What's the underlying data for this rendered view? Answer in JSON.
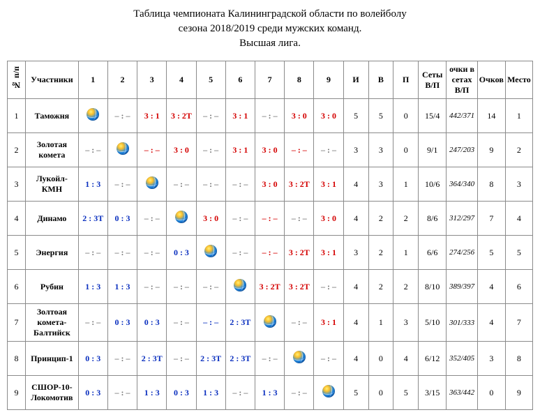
{
  "title_lines": [
    "Таблица чемпионата Калининградской области по волейболу",
    "сезона 2018/2019 среди мужских команд.",
    "Высшая лига."
  ],
  "columns": {
    "num": "№ п/п",
    "team": "Участники",
    "scores": [
      "1",
      "2",
      "3",
      "4",
      "5",
      "6",
      "7",
      "8",
      "9"
    ],
    "stats": [
      "И",
      "В",
      "П"
    ],
    "sets": "Сеты В/П",
    "setpts": "очки в сетах В/П",
    "pts": "Очков",
    "place": "Место"
  },
  "colors": {
    "red": "#d40000",
    "blue": "#0a2fbf",
    "black": "#222222",
    "gray_dash": "#777777"
  },
  "rows": [
    {
      "n": "1",
      "team": "Таможня",
      "cells": [
        {
          "ball": true
        },
        {
          "t": "– : –",
          "c": "gray_dash"
        },
        {
          "t": "3 : 1",
          "c": "red"
        },
        {
          "t": "3 : 2Т",
          "c": "red"
        },
        {
          "t": "– : –",
          "c": "gray_dash"
        },
        {
          "t": "3 : 1",
          "c": "red"
        },
        {
          "t": "– : –",
          "c": "gray_dash"
        },
        {
          "t": "3 : 0",
          "c": "red"
        },
        {
          "t": "3 : 0",
          "c": "red"
        }
      ],
      "I": "5",
      "V": "5",
      "P": "0",
      "sets": "15/4",
      "setpts": "442/371",
      "pts": "14",
      "place": "1"
    },
    {
      "n": "2",
      "team": "Золотая комета",
      "cells": [
        {
          "t": "– : –",
          "c": "gray_dash"
        },
        {
          "ball": true
        },
        {
          "t": "– : –",
          "c": "red"
        },
        {
          "t": "3 : 0",
          "c": "red"
        },
        {
          "t": "– : –",
          "c": "gray_dash"
        },
        {
          "t": "3 : 1",
          "c": "red"
        },
        {
          "t": "3 : 0",
          "c": "red"
        },
        {
          "t": "– : –",
          "c": "red"
        },
        {
          "t": "– : –",
          "c": "gray_dash"
        }
      ],
      "I": "3",
      "V": "3",
      "P": "0",
      "sets": "9/1",
      "setpts": "247/203",
      "pts": "9",
      "place": "2"
    },
    {
      "n": "3",
      "team": "Лукойл- КМН",
      "cells": [
        {
          "t": "1 : 3",
          "c": "blue"
        },
        {
          "t": "– : –",
          "c": "gray_dash"
        },
        {
          "ball": true
        },
        {
          "t": "– : –",
          "c": "gray_dash"
        },
        {
          "t": "– : –",
          "c": "gray_dash"
        },
        {
          "t": "– : –",
          "c": "gray_dash"
        },
        {
          "t": "3 : 0",
          "c": "red"
        },
        {
          "t": "3 : 2Т",
          "c": "red"
        },
        {
          "t": "3 : 1",
          "c": "red"
        }
      ],
      "I": "4",
      "V": "3",
      "P": "1",
      "sets": "10/6",
      "setpts": "364/340",
      "pts": "8",
      "place": "3"
    },
    {
      "n": "4",
      "team": "Динамо",
      "cells": [
        {
          "t": "2 : 3Т",
          "c": "blue"
        },
        {
          "t": "0 : 3",
          "c": "blue"
        },
        {
          "t": "– : –",
          "c": "gray_dash"
        },
        {
          "ball": true
        },
        {
          "t": "3 : 0",
          "c": "red"
        },
        {
          "t": "– : –",
          "c": "gray_dash"
        },
        {
          "t": "– : –",
          "c": "red"
        },
        {
          "t": "– : –",
          "c": "gray_dash"
        },
        {
          "t": "3 : 0",
          "c": "red"
        }
      ],
      "I": "4",
      "V": "2",
      "P": "2",
      "sets": "8/6",
      "setpts": "312/297",
      "pts": "7",
      "place": "4"
    },
    {
      "n": "5",
      "team": "Энергия",
      "cells": [
        {
          "t": "– : –",
          "c": "gray_dash"
        },
        {
          "t": "– : –",
          "c": "gray_dash"
        },
        {
          "t": "– : –",
          "c": "gray_dash"
        },
        {
          "t": "0 : 3",
          "c": "blue"
        },
        {
          "ball": true
        },
        {
          "t": "– : –",
          "c": "gray_dash"
        },
        {
          "t": "– : –",
          "c": "red"
        },
        {
          "t": "3 : 2Т",
          "c": "red"
        },
        {
          "t": "3 : 1",
          "c": "red"
        }
      ],
      "I": "3",
      "V": "2",
      "P": "1",
      "sets": "6/6",
      "setpts": "274/256",
      "pts": "5",
      "place": "5"
    },
    {
      "n": "6",
      "team": "Рубин",
      "cells": [
        {
          "t": "1 : 3",
          "c": "blue"
        },
        {
          "t": "1 : 3",
          "c": "blue"
        },
        {
          "t": "– : –",
          "c": "gray_dash"
        },
        {
          "t": "– : –",
          "c": "gray_dash"
        },
        {
          "t": "– : –",
          "c": "gray_dash"
        },
        {
          "ball": true
        },
        {
          "t": "3 : 2Т",
          "c": "red"
        },
        {
          "t": "3 : 2Т",
          "c": "red"
        },
        {
          "t": "– : –",
          "c": "gray_dash"
        }
      ],
      "I": "4",
      "V": "2",
      "P": "2",
      "sets": "8/10",
      "setpts": "389/397",
      "pts": "4",
      "place": "6"
    },
    {
      "n": "7",
      "team": "Золтоая комета-Балтийск",
      "cells": [
        {
          "t": "– : –",
          "c": "gray_dash"
        },
        {
          "t": "0 : 3",
          "c": "blue"
        },
        {
          "t": "0 : 3",
          "c": "blue"
        },
        {
          "t": "– : –",
          "c": "gray_dash"
        },
        {
          "t": "– : –",
          "c": "blue"
        },
        {
          "t": "2 : 3Т",
          "c": "blue"
        },
        {
          "ball": true
        },
        {
          "t": "– : –",
          "c": "gray_dash"
        },
        {
          "t": "3 : 1",
          "c": "red"
        }
      ],
      "I": "4",
      "V": "1",
      "P": "3",
      "sets": "5/10",
      "setpts": "301/333",
      "pts": "4",
      "place": "7"
    },
    {
      "n": "8",
      "team": "Принцип-1",
      "cells": [
        {
          "t": "0 : 3",
          "c": "blue"
        },
        {
          "t": "– : –",
          "c": "gray_dash"
        },
        {
          "t": "2 : 3Т",
          "c": "blue"
        },
        {
          "t": "– : –",
          "c": "gray_dash"
        },
        {
          "t": "2 : 3Т",
          "c": "blue"
        },
        {
          "t": "2 : 3Т",
          "c": "blue"
        },
        {
          "t": "– : –",
          "c": "gray_dash"
        },
        {
          "ball": true
        },
        {
          "t": "– : –",
          "c": "gray_dash"
        }
      ],
      "I": "4",
      "V": "0",
      "P": "4",
      "sets": "6/12",
      "setpts": "352/405",
      "pts": "3",
      "place": "8"
    },
    {
      "n": "9",
      "team": "СШОР-10-Локомотив",
      "cells": [
        {
          "t": "0 : 3",
          "c": "blue"
        },
        {
          "t": "– : –",
          "c": "gray_dash"
        },
        {
          "t": "1 : 3",
          "c": "blue"
        },
        {
          "t": "0 : 3",
          "c": "blue"
        },
        {
          "t": "1 : 3",
          "c": "blue"
        },
        {
          "t": "– : –",
          "c": "gray_dash"
        },
        {
          "t": "1 : 3",
          "c": "blue"
        },
        {
          "t": "– : –",
          "c": "gray_dash"
        },
        {
          "ball": true
        }
      ],
      "I": "5",
      "V": "0",
      "P": "5",
      "sets": "3/15",
      "setpts": "363/442",
      "pts": "0",
      "place": "9"
    }
  ]
}
